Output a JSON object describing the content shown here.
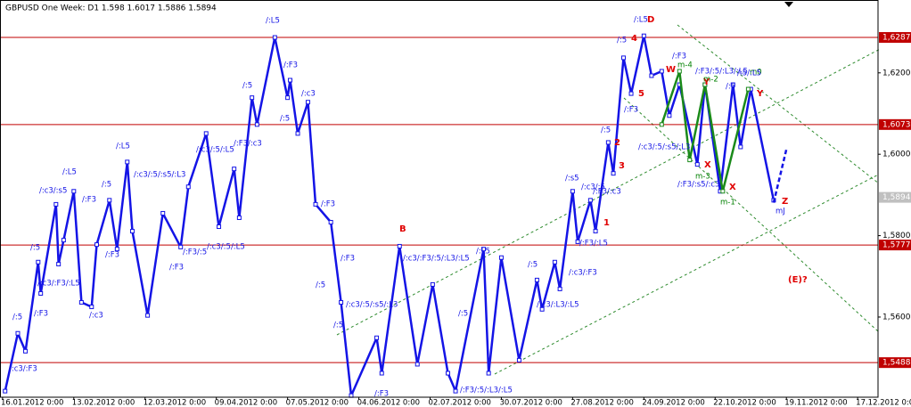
{
  "chart_data": {
    "type": "line",
    "title": "GBPUSD  One Week: D1  1.598 1.6017 1.5886 1.5894",
    "xlim": [
      "15.01.2012",
      "25.12.2012"
    ],
    "xticks": [
      {
        "value": "16.01.2012",
        "label": "16.01.2012 0:00"
      },
      {
        "value": "13.02.2012",
        "label": "13.02.2012 0:00"
      },
      {
        "value": "12.03.2012",
        "label": "12.03.2012 0:00"
      },
      {
        "value": "09.04.2012",
        "label": "09.04.2012 0:00"
      },
      {
        "value": "07.05.2012",
        "label": "07.05.2012 0:00"
      },
      {
        "value": "04.06.2012",
        "label": "04.06.2012 0:00"
      },
      {
        "value": "02.07.2012",
        "label": "02.07.2012 0:00"
      },
      {
        "value": "30.07.2012",
        "label": "30.07.2012 0:00"
      },
      {
        "value": "27.08.2012",
        "label": "27.08.2012 0:00"
      },
      {
        "value": "24.09.2012",
        "label": "24.09.2012 0:00"
      },
      {
        "value": "22.10.2012",
        "label": "22.10.2012 0:00"
      },
      {
        "value": "19.11.2012",
        "label": "19.11.2012 0:00"
      },
      {
        "value": "17.12.2012",
        "label": "17.12.2012 0:00"
      }
    ],
    "ylim": [
      1.5403,
      1.6379
    ],
    "yticks": [
      {
        "value": 1.56,
        "label": "1,5600"
      },
      {
        "value": 1.58,
        "label": "1,5800"
      },
      {
        "value": 1.6,
        "label": "1,6000"
      },
      {
        "value": 1.62,
        "label": "1,6200"
      }
    ],
    "levels": [
      {
        "value": 1.6287,
        "label": "1,6287"
      },
      {
        "value": 1.6073,
        "label": "1,6073"
      },
      {
        "value": 1.5777,
        "label": "1,5777"
      },
      {
        "value": 1.5488,
        "label": "1,5488"
      }
    ],
    "level_color": "#c00000",
    "current_price": {
      "value": 1.5894,
      "label": "1,5894"
    },
    "series": [
      {
        "color": "#1414e6",
        "dashed": false,
        "x": [
          "17.01.2012",
          "22.01.2012",
          "25.01.2012",
          "30.01.2012",
          "31.01.2012",
          "06.02.2012",
          "07.02.2012",
          "09.02.2012",
          "13.02.2012",
          "16.02.2012",
          "20.02.2012",
          "22.02.2012",
          "27.02.2012",
          "01.03.2012",
          "05.03.2012",
          "07.03.2012",
          "13.03.2012",
          "19.03.2012",
          "26.03.2012",
          "29.03.2012",
          "05.04.2012",
          "10.04.2012",
          "16.04.2012",
          "18.04.2012",
          "23.04.2012",
          "25.04.2012",
          "02.05.2012",
          "07.05.2012",
          "08.05.2012",
          "11.05.2012",
          "15.05.2012",
          "18.05.2012",
          "24.05.2012",
          "28.05.2012",
          "01.06.2012",
          "11.06.2012",
          "13.06.2012",
          "20.06.2012",
          "27.06.2012",
          "03.07.2012",
          "09.07.2012",
          "12.07.2012",
          "23.07.2012",
          "25.07.2012",
          "30.07.2012",
          "06.08.2012",
          "13.08.2012",
          "15.08.2012",
          "20.08.2012",
          "22.08.2012",
          "27.08.2012",
          "29.08.2012",
          "03.09.2012",
          "05.09.2012",
          "10.09.2012",
          "12.09.2012",
          "16.09.2012",
          "19.09.2012",
          "24.09.2012",
          "27.09.2012",
          "01.10.2012",
          "04.10.2012",
          "08.10.2012",
          "15.10.2012",
          "18.10.2012",
          "24.10.2012",
          "29.10.2012",
          "01.11.2012",
          "05.11.2012",
          "14.11.2012"
        ],
        "values": [
          1.5418,
          1.556,
          1.5516,
          1.5735,
          1.5658,
          1.5877,
          1.573,
          1.5789,
          1.5909,
          1.5636,
          1.5625,
          1.5778,
          1.5887,
          1.5767,
          1.5981,
          1.5811,
          1.5604,
          1.5855,
          1.5772,
          1.592,
          1.6051,
          1.5822,
          1.5964,
          1.5844,
          1.6139,
          1.6073,
          1.6287,
          1.6139,
          1.6182,
          1.6051,
          1.6128,
          1.5877,
          1.5833,
          1.5636,
          1.5407,
          1.5549,
          1.5462,
          1.5774,
          1.5484,
          1.568,
          1.5462,
          1.5418,
          1.5767,
          1.5462,
          1.5746,
          1.5494,
          1.5691,
          1.5619,
          1.5735,
          1.5669,
          1.5909,
          1.5785,
          1.5887,
          1.5811,
          1.6029,
          1.5953,
          1.6237,
          1.6149,
          1.6291,
          1.6193,
          1.6204,
          1.6095,
          1.6171,
          1.5975,
          1.6171,
          1.5909,
          1.6171,
          1.6018,
          1.616,
          1.5887
        ]
      },
      {
        "color": "#1414e6",
        "dashed": true,
        "x": [
          "14.11.2012",
          "19.11.2012"
        ],
        "values": [
          1.5881,
          1.6012
        ]
      },
      {
        "color": "#1a8a1a",
        "dashed": false,
        "x": [
          "01.10.2012",
          "08.10.2012",
          "12.10.2012",
          "18.10.2012",
          "25.10.2012",
          "04.11.2012"
        ],
        "values": [
          1.6073,
          1.6204,
          1.5986,
          1.6171,
          1.5909,
          1.616
        ]
      }
    ],
    "annotations": [
      {
        "text": "B",
        "color": "#e00000"
      },
      {
        "text": "D",
        "color": "#e00000"
      },
      {
        "text": "1",
        "color": "#e00000"
      },
      {
        "text": "2",
        "color": "#e00000"
      },
      {
        "text": "3",
        "color": "#e00000"
      },
      {
        "text": "4",
        "color": "#e00000"
      },
      {
        "text": "5",
        "color": "#e00000"
      },
      {
        "text": "X",
        "color": "#e00000"
      },
      {
        "text": "X",
        "color": "#e00000"
      },
      {
        "text": "Y",
        "color": "#e00000"
      },
      {
        "text": "Y",
        "color": "#e00000"
      },
      {
        "text": "Z",
        "color": "#e00000"
      },
      {
        "text": "(E)?",
        "color": "#e00000"
      },
      {
        "text": "W",
        "color": "#e00000"
      },
      {
        "text": "m-4",
        "color": "#008000"
      },
      {
        "text": "m-2",
        "color": "#008000"
      },
      {
        "text": "m0",
        "color": "#008000"
      },
      {
        "text": "m-3",
        "color": "#008000"
      },
      {
        "text": "m-1",
        "color": "#008000"
      },
      {
        "text": "mJ",
        "color": "#1414e6"
      },
      {
        "text": "/:c3/:F3",
        "color": "#1414e6"
      },
      {
        "text": "/:5",
        "color": "#1414e6"
      },
      {
        "text": "/:F3",
        "color": "#1414e6"
      },
      {
        "text": "/:c3/:F3/:L5",
        "color": "#1414e6"
      },
      {
        "text": "/:5",
        "color": "#1414e6"
      },
      {
        "text": "/:c3/:s5",
        "color": "#1414e6"
      },
      {
        "text": "/:L5",
        "color": "#1414e6"
      },
      {
        "text": "/:F3",
        "color": "#1414e6"
      },
      {
        "text": "/:5",
        "color": "#1414e6"
      },
      {
        "text": "/:c3",
        "color": "#1414e6"
      },
      {
        "text": "/:F3",
        "color": "#1414e6"
      },
      {
        "text": "/:L5",
        "color": "#1414e6"
      },
      {
        "text": "/:c3/:5/:s5/:L3",
        "color": "#1414e6"
      },
      {
        "text": "/:F3",
        "color": "#1414e6"
      },
      {
        "text": "/:c3/:5/:L5",
        "color": "#1414e6"
      },
      {
        "text": "/:c3/:5/:L5",
        "color": "#1414e6"
      },
      {
        "text": "/:F3/:5",
        "color": "#1414e6"
      },
      {
        "text": "/:F3/:c3",
        "color": "#1414e6"
      },
      {
        "text": "/:5",
        "color": "#1414e6"
      },
      {
        "text": "/:L5",
        "color": "#1414e6"
      },
      {
        "text": "/:F3",
        "color": "#1414e6"
      },
      {
        "text": "/:c3",
        "color": "#1414e6"
      },
      {
        "text": "/:5",
        "color": "#1414e6"
      },
      {
        "text": "/:F3",
        "color": "#1414e6"
      },
      {
        "text": "/:F3",
        "color": "#1414e6"
      },
      {
        "text": "/:5",
        "color": "#1414e6"
      },
      {
        "text": "/:5",
        "color": "#1414e6"
      },
      {
        "text": "/:c3/:5/:s5/:L3",
        "color": "#1414e6"
      },
      {
        "text": "/:c3/:F3/:5/:L3/:L5",
        "color": "#1414e6"
      },
      {
        "text": "/:L5",
        "color": "#1414e6"
      },
      {
        "text": "/:5",
        "color": "#1414e6"
      },
      {
        "text": "/:5",
        "color": "#1414e6"
      },
      {
        "text": "/:c3/:F3",
        "color": "#1414e6"
      },
      {
        "text": "/:c3/:L3/:L5",
        "color": "#1414e6"
      },
      {
        "text": "/:F3/:L5",
        "color": "#1414e6"
      },
      {
        "text": "/:s5",
        "color": "#1414e6"
      },
      {
        "text": "/:c3/:5",
        "color": "#1414e6"
      },
      {
        "text": "/:F3/:c3",
        "color": "#1414e6"
      },
      {
        "text": "/:5",
        "color": "#1414e6"
      },
      {
        "text": "/:5",
        "color": "#1414e6"
      },
      {
        "text": "/:L5",
        "color": "#1414e6"
      },
      {
        "text": "/:F3",
        "color": "#1414e6"
      },
      {
        "text": "/:F3",
        "color": "#1414e6"
      },
      {
        "text": "/:c3/:5/:s5/:L3",
        "color": "#1414e6"
      },
      {
        "text": "/:F3/:5/:L3/:L5",
        "color": "#1414e6"
      },
      {
        "text": "/:5",
        "color": "#1414e6"
      },
      {
        "text": "/:5/:L5",
        "color": "#1414e6"
      },
      {
        "text": "/:F3/:s5/:c3",
        "color": "#1414e6"
      },
      {
        "text": "/:F3/:5/:L3/:L5",
        "color": "#1414e6"
      },
      {
        "text": "/:F3",
        "color": "#1414e6"
      }
    ]
  }
}
